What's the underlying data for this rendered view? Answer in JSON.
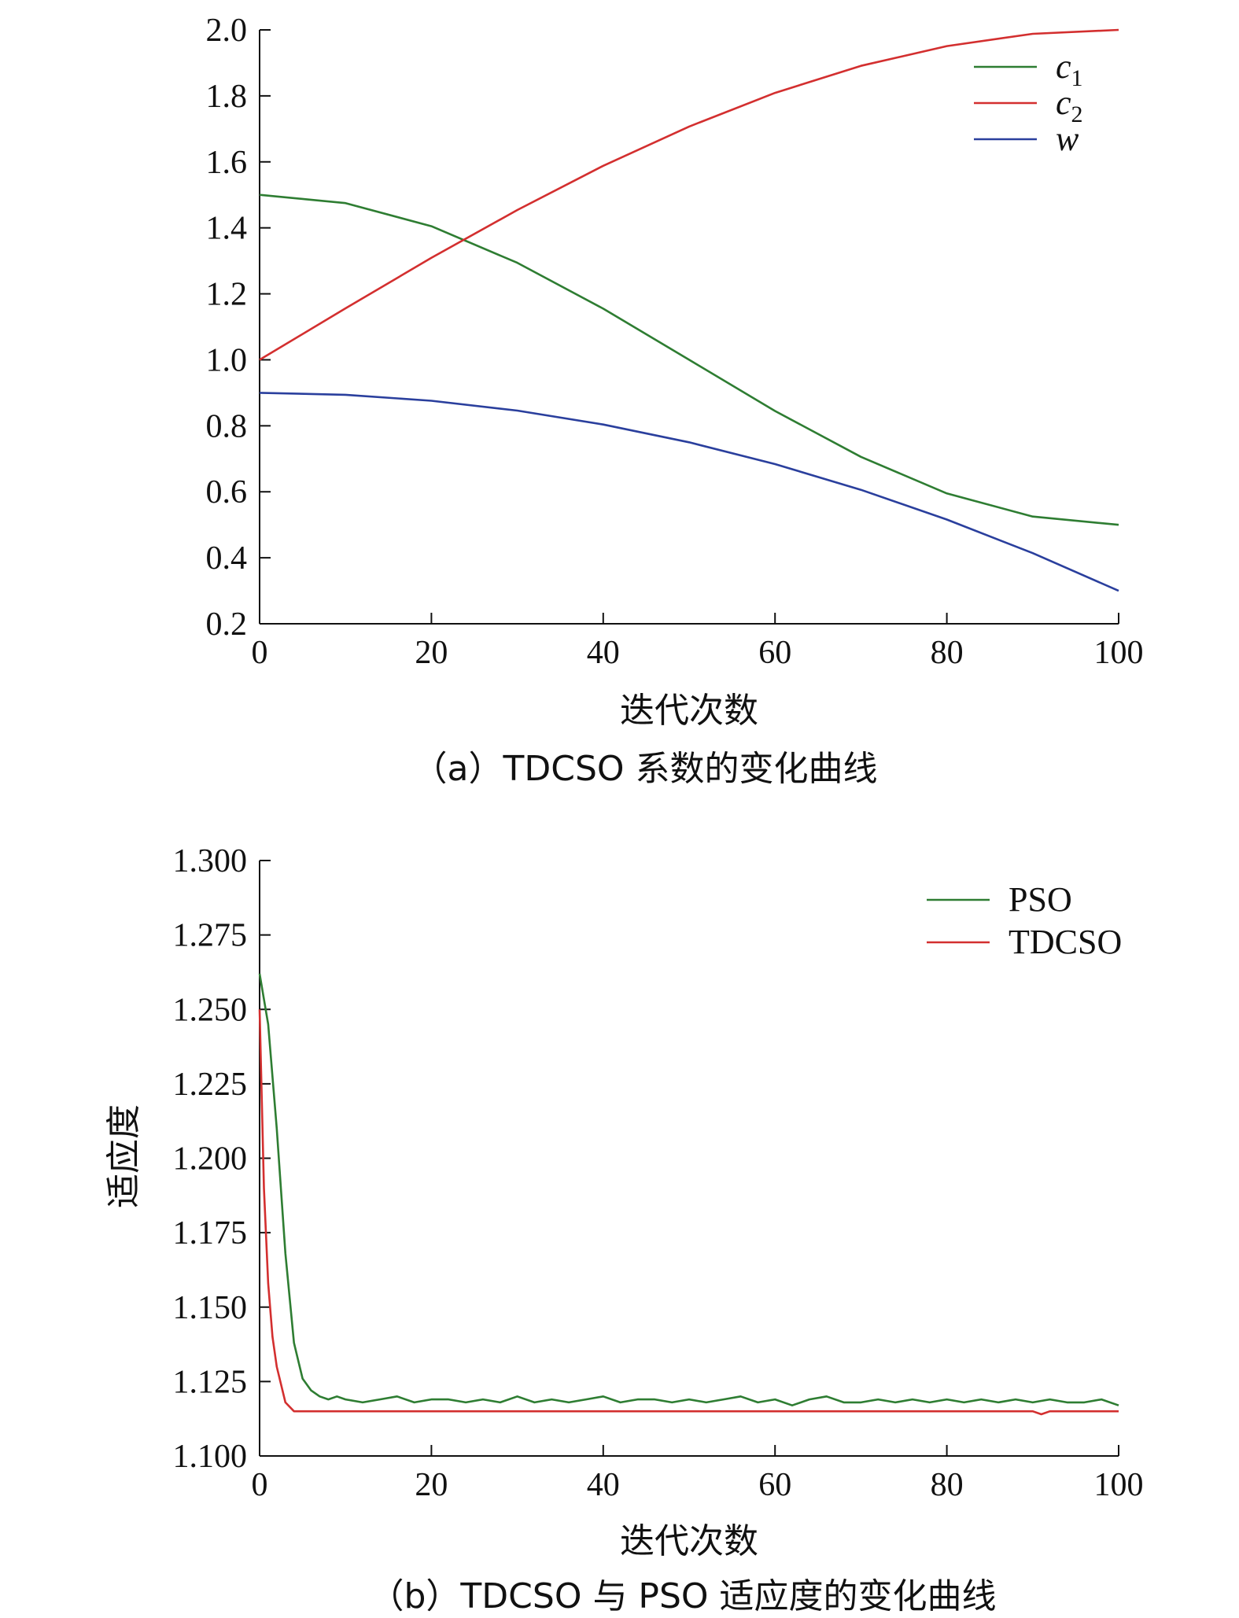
{
  "chart_data": [
    {
      "type": "line",
      "caption": "（a）TDCSO 系数的变化曲线",
      "xlabel": "迭代次数",
      "ylabel": "",
      "xlim": [
        0,
        100
      ],
      "ylim": [
        0.2,
        2.0
      ],
      "xticks": [
        0,
        20,
        40,
        60,
        80,
        100
      ],
      "yticks": [
        0.2,
        0.4,
        0.6,
        0.8,
        1.0,
        1.2,
        1.4,
        1.6,
        1.8,
        2.0
      ],
      "x_tick_labels": [
        "0",
        "20",
        "40",
        "60",
        "80",
        "100"
      ],
      "y_tick_labels": [
        "0.2",
        "0.4",
        "0.6",
        "0.8",
        "1.0",
        "1.2",
        "1.4",
        "1.6",
        "1.8",
        "2.0"
      ],
      "legend_position": "top-right",
      "grid": false,
      "series": [
        {
          "name": "c1",
          "legend_main": "c",
          "legend_sub": "1",
          "color": "#2e7d32",
          "x": [
            0,
            10,
            20,
            30,
            40,
            50,
            60,
            70,
            80,
            90,
            100
          ],
          "y": [
            1.5,
            1.475,
            1.405,
            1.294,
            1.155,
            1.0,
            0.845,
            0.706,
            0.595,
            0.525,
            0.5
          ]
        },
        {
          "name": "c2",
          "legend_main": "c",
          "legend_sub": "2",
          "color": "#d32f2f",
          "x": [
            0,
            10,
            20,
            30,
            40,
            50,
            60,
            70,
            80,
            90,
            100
          ],
          "y": [
            1.0,
            1.156,
            1.309,
            1.454,
            1.588,
            1.707,
            1.809,
            1.891,
            1.951,
            1.988,
            2.0
          ]
        },
        {
          "name": "w",
          "legend_main": "w",
          "legend_sub": "",
          "color": "#2a3f9d",
          "x": [
            0,
            10,
            20,
            30,
            40,
            50,
            60,
            70,
            80,
            90,
            100
          ],
          "y": [
            0.9,
            0.894,
            0.876,
            0.846,
            0.804,
            0.75,
            0.684,
            0.606,
            0.516,
            0.414,
            0.3
          ]
        }
      ]
    },
    {
      "type": "line",
      "caption": "（b）TDCSO 与 PSO 适应度的变化曲线",
      "xlabel": "迭代次数",
      "ylabel": "适应度",
      "xlim": [
        0,
        100
      ],
      "ylim": [
        1.1,
        1.3
      ],
      "xticks": [
        0,
        20,
        40,
        60,
        80,
        100
      ],
      "yticks": [
        1.1,
        1.125,
        1.15,
        1.175,
        1.2,
        1.225,
        1.25,
        1.275,
        1.3
      ],
      "x_tick_labels": [
        "0",
        "20",
        "40",
        "60",
        "80",
        "100"
      ],
      "y_tick_labels": [
        "1.100",
        "1.125",
        "1.150",
        "1.175",
        "1.200",
        "1.225",
        "1.250",
        "1.275",
        "1.300"
      ],
      "legend_position": "top-right",
      "grid": false,
      "series": [
        {
          "name": "PSO",
          "color": "#2e7d32",
          "x": [
            0,
            1,
            2,
            3,
            4,
            5,
            6,
            7,
            8,
            9,
            10,
            12,
            14,
            16,
            18,
            20,
            22,
            24,
            26,
            28,
            30,
            32,
            34,
            36,
            38,
            40,
            42,
            44,
            46,
            48,
            50,
            52,
            54,
            56,
            58,
            60,
            62,
            64,
            66,
            68,
            70,
            72,
            74,
            76,
            78,
            80,
            82,
            84,
            86,
            88,
            90,
            92,
            94,
            96,
            98,
            100
          ],
          "y": [
            1.262,
            1.245,
            1.21,
            1.168,
            1.138,
            1.126,
            1.122,
            1.12,
            1.119,
            1.12,
            1.119,
            1.118,
            1.119,
            1.12,
            1.118,
            1.119,
            1.119,
            1.118,
            1.119,
            1.118,
            1.12,
            1.118,
            1.119,
            1.118,
            1.119,
            1.12,
            1.118,
            1.119,
            1.119,
            1.118,
            1.119,
            1.118,
            1.119,
            1.12,
            1.118,
            1.119,
            1.117,
            1.119,
            1.12,
            1.118,
            1.118,
            1.119,
            1.118,
            1.119,
            1.118,
            1.119,
            1.118,
            1.119,
            1.118,
            1.119,
            1.118,
            1.119,
            1.118,
            1.118,
            1.119,
            1.117
          ]
        },
        {
          "name": "TDCSO",
          "color": "#d32f2f",
          "x": [
            0,
            0.5,
            1,
            1.5,
            2,
            3,
            4,
            5,
            6,
            8,
            10,
            15,
            20,
            25,
            30,
            35,
            40,
            45,
            50,
            55,
            60,
            65,
            70,
            75,
            80,
            85,
            90,
            91,
            92,
            95,
            100
          ],
          "y": [
            1.25,
            1.19,
            1.158,
            1.14,
            1.13,
            1.118,
            1.115,
            1.115,
            1.115,
            1.115,
            1.115,
            1.115,
            1.115,
            1.115,
            1.115,
            1.115,
            1.115,
            1.115,
            1.115,
            1.115,
            1.115,
            1.115,
            1.115,
            1.115,
            1.115,
            1.115,
            1.115,
            1.114,
            1.115,
            1.115,
            1.115
          ]
        }
      ]
    }
  ]
}
